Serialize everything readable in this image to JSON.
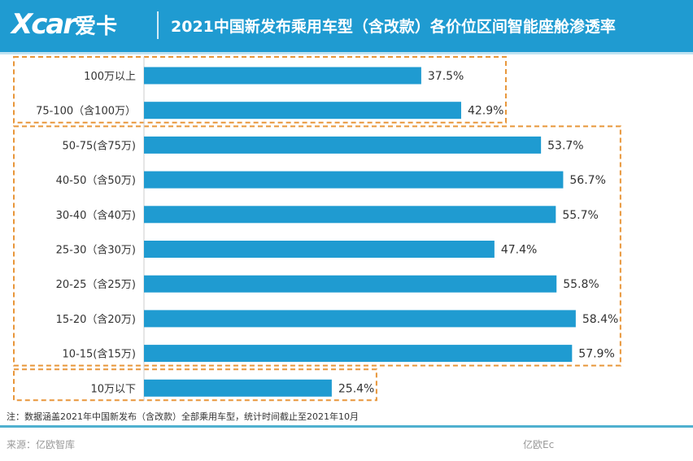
{
  "header": {
    "logo": "Xcar",
    "logo_cn": "爱卡",
    "title": "2021中国新发布乘用车型（含改款）各价位区间智能座舱渗透率"
  },
  "chart_data": {
    "type": "bar",
    "orientation": "horizontal",
    "categories": [
      "100万以上",
      "75-100（含100万）",
      "50-75(含75万)",
      "40-50（含50万)",
      "30-40（含40万)",
      "25-30（含30万)",
      "20-25（含25万)",
      "15-20（含20万)",
      "10-15(含15万)",
      "10万以下"
    ],
    "values": [
      37.5,
      42.9,
      53.7,
      56.7,
      55.7,
      47.4,
      55.8,
      58.4,
      57.9,
      25.4
    ],
    "labels": [
      "37.5%",
      "42.9%",
      "53.7%",
      "56.7%",
      "55.7%",
      "47.4%",
      "55.8%",
      "58.4%",
      "57.9%",
      "25.4%"
    ],
    "unit": "%",
    "bar_color": "#1f9bd1",
    "group_box_color": "#e8963a",
    "groups": [
      [
        0,
        1
      ],
      [
        2,
        8
      ],
      [
        9,
        9
      ]
    ]
  },
  "footer": {
    "note": "注：数据涵盖2021年中国新发布（含改款）全部乘用车型，统计时间截止至2021年10月",
    "source": "来源：亿欧智库",
    "watermark": "亿欧Ec"
  }
}
